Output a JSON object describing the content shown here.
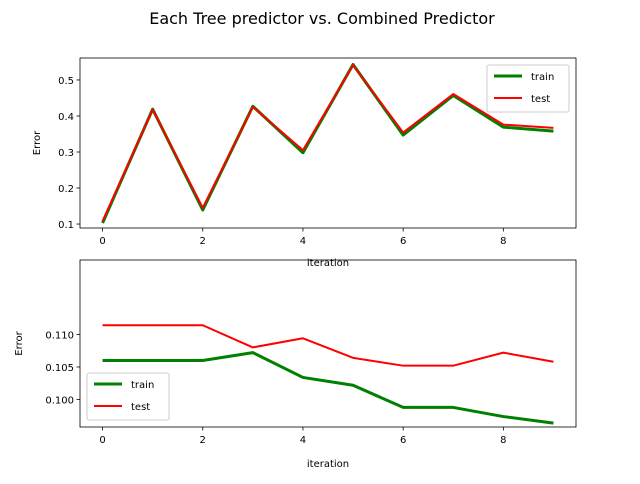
{
  "figure": {
    "suptitle": "Each Tree predictor vs. Combined Predictor"
  },
  "chart_data": [
    {
      "type": "line",
      "title": "",
      "xlabel": "iteration",
      "ylabel": "Error",
      "x": [
        0,
        1,
        2,
        3,
        4,
        5,
        6,
        7,
        8,
        9
      ],
      "xlim": [
        -0.45,
        9.45
      ],
      "ylim": [
        0.089,
        0.561
      ],
      "xticks": [
        0,
        2,
        4,
        6,
        8
      ],
      "yticks": [
        0.1,
        0.2,
        0.3,
        0.4,
        0.5
      ],
      "xtick_labels": [
        "0",
        "2",
        "4",
        "6",
        "8"
      ],
      "ytick_labels": [
        "0.1",
        "0.2",
        "0.3",
        "0.4",
        "0.5"
      ],
      "grid": false,
      "legend_position": "upper right",
      "series": [
        {
          "name": "train",
          "color": "#008000",
          "linewidth": 3,
          "values": [
            0.103,
            0.419,
            0.139,
            0.427,
            0.298,
            0.543,
            0.347,
            0.457,
            0.369,
            0.358
          ]
        },
        {
          "name": "test",
          "color": "#ff0000",
          "linewidth": 2,
          "values": [
            0.108,
            0.418,
            0.145,
            0.425,
            0.305,
            0.541,
            0.354,
            0.461,
            0.376,
            0.367
          ]
        }
      ]
    },
    {
      "type": "line",
      "title": "",
      "xlabel": "iteration",
      "ylabel": "Error",
      "x": [
        0,
        1,
        2,
        3,
        4,
        5,
        6,
        7,
        8,
        9
      ],
      "xlim": [
        -0.45,
        9.45
      ],
      "ylim": [
        0.0958,
        0.1214
      ],
      "xticks": [
        0,
        2,
        4,
        6,
        8
      ],
      "yticks": [
        0.1,
        0.105,
        0.11
      ],
      "xtick_labels": [
        "0",
        "2",
        "4",
        "6",
        "8"
      ],
      "ytick_labels": [
        "0.100",
        "0.105",
        "0.110"
      ],
      "grid": false,
      "legend_position": "lower left",
      "series": [
        {
          "name": "train",
          "color": "#008000",
          "linewidth": 3,
          "values": [
            0.106,
            0.106,
            0.106,
            0.1072,
            0.1034,
            0.1022,
            0.0988,
            0.0988,
            0.0974,
            0.0964
          ]
        },
        {
          "name": "test",
          "color": "#ff0000",
          "linewidth": 2,
          "values": [
            0.1114,
            0.1114,
            0.1114,
            0.108,
            0.1094,
            0.1064,
            0.1052,
            0.1052,
            0.1072,
            0.1058
          ]
        }
      ]
    }
  ]
}
